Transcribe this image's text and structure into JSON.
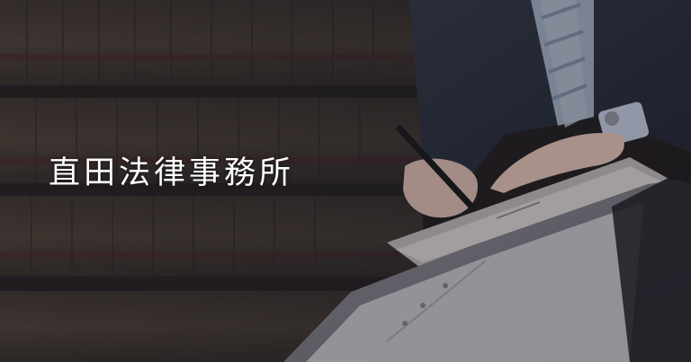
{
  "page": {
    "title": "直田法律事務所"
  },
  "scene": {
    "description_icon": "lawyer-writing-photo",
    "overlay_color": "#1d1a1e"
  }
}
